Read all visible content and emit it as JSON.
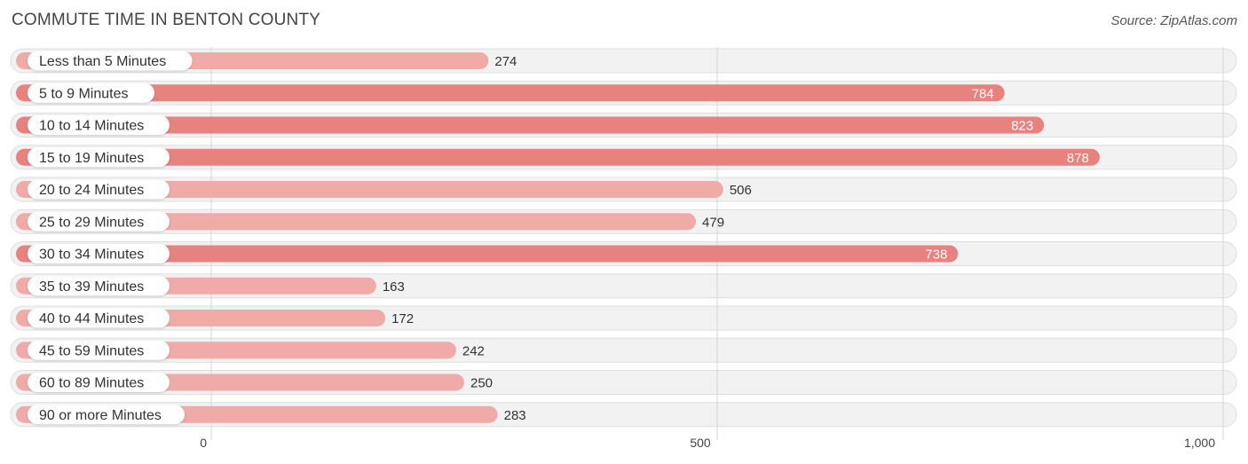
{
  "chart_data": {
    "type": "bar",
    "orientation": "horizontal",
    "title": "COMMUTE TIME IN BENTON COUNTY",
    "source": "Source: ZipAtlas.com",
    "categories": [
      "Less than 5 Minutes",
      "5 to 9 Minutes",
      "10 to 14 Minutes",
      "15 to 19 Minutes",
      "20 to 24 Minutes",
      "25 to 29 Minutes",
      "30 to 34 Minutes",
      "35 to 39 Minutes",
      "40 to 44 Minutes",
      "45 to 59 Minutes",
      "60 to 89 Minutes",
      "90 or more Minutes"
    ],
    "values": [
      274,
      784,
      823,
      878,
      506,
      479,
      738,
      163,
      172,
      242,
      250,
      283
    ],
    "xlim": [
      0,
      1000
    ],
    "xticks": [
      0,
      500,
      1000
    ],
    "xtick_labels": [
      "0",
      "500",
      "1,000"
    ],
    "xlabel": "",
    "ylabel": "",
    "grid": true,
    "colors": {
      "bar_light": "#f0aaa8",
      "bar_dark": "#e8827e",
      "value_inside": "#ffffff",
      "value_outside": "#333333"
    }
  }
}
